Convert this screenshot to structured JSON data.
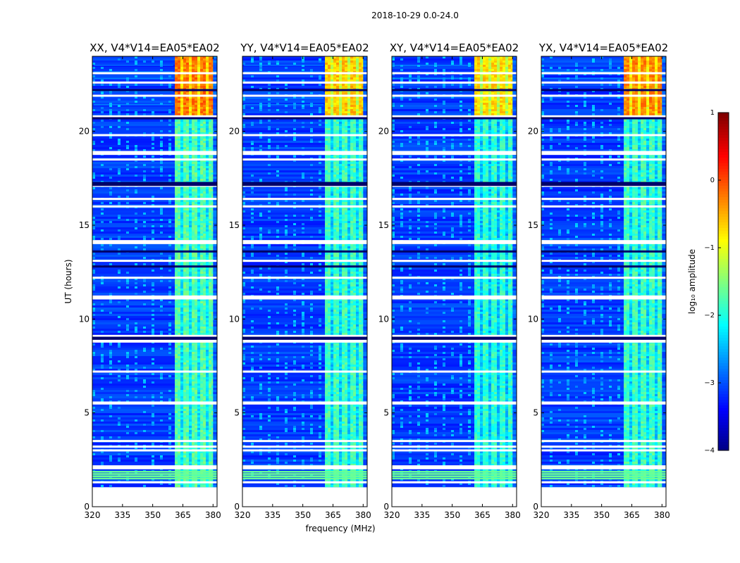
{
  "figure": {
    "title": "2018-10-29 0.0-24.0",
    "xlabel": "frequency (MHz)",
    "ylabel": "UT (hours)"
  },
  "colorbar": {
    "label": "log₁₀ amplitude",
    "vmin": -4,
    "vmax": 1,
    "ticks": [
      1,
      0,
      -1,
      -2,
      -3,
      -4
    ],
    "tick_labels": [
      "1",
      "0",
      "−1",
      "−2",
      "−3",
      "−4"
    ]
  },
  "chart_data": [
    {
      "type": "heatmap",
      "title": "XX, V4*V14=EA05*EA02",
      "xlabel": "",
      "ylabel": "UT (hours)",
      "xlim": [
        320,
        382
      ],
      "ylim": [
        0,
        24
      ],
      "x_ticks": [
        320,
        335,
        350,
        365,
        380
      ],
      "y_ticks": [
        0,
        5,
        10,
        15,
        20
      ],
      "hot_band_mhz": [
        361,
        380
      ],
      "band_level_early": -1.7,
      "band_level_late": -0.2,
      "background_level": -3.1,
      "data_start_hour": 1.1,
      "data_end_hour": 24.0,
      "change_hour": 20.9
    },
    {
      "type": "heatmap",
      "title": "YY, V4*V14=EA05*EA02",
      "xlabel": "frequency (MHz)",
      "ylabel": "",
      "xlim": [
        320,
        382
      ],
      "ylim": [
        0,
        24
      ],
      "x_ticks": [
        320,
        335,
        350,
        365,
        380
      ],
      "y_ticks": [
        0,
        5,
        10,
        15,
        20
      ],
      "hot_band_mhz": [
        361,
        380
      ],
      "band_level_early": -1.8,
      "band_level_late": -0.6,
      "background_level": -3.1,
      "data_start_hour": 1.1,
      "data_end_hour": 24.0,
      "change_hour": 20.9
    },
    {
      "type": "heatmap",
      "title": "XY, V4*V14=EA05*EA02",
      "xlabel": "",
      "ylabel": "",
      "xlim": [
        320,
        382
      ],
      "ylim": [
        0,
        24
      ],
      "x_ticks": [
        320,
        335,
        350,
        365,
        380
      ],
      "y_ticks": [
        0,
        5,
        10,
        15,
        20
      ],
      "hot_band_mhz": [
        361,
        380
      ],
      "band_level_early": -1.9,
      "band_level_late": -0.7,
      "background_level": -3.1,
      "data_start_hour": 1.1,
      "data_end_hour": 24.0,
      "change_hour": 20.9
    },
    {
      "type": "heatmap",
      "title": "YX, V4*V14=EA05*EA02",
      "xlabel": "",
      "ylabel": "",
      "xlim": [
        320,
        382
      ],
      "ylim": [
        0,
        24
      ],
      "x_ticks": [
        320,
        335,
        350,
        365,
        380
      ],
      "y_ticks": [
        0,
        5,
        10,
        15,
        20
      ],
      "hot_band_mhz": [
        361,
        380
      ],
      "band_level_early": -1.8,
      "band_level_late": -0.3,
      "background_level": -3.1,
      "data_start_hour": 1.1,
      "data_end_hour": 24.0,
      "change_hour": 20.9
    }
  ],
  "flagged_rows_hours": [
    1.3,
    2.05,
    2.15,
    3.0,
    3.2,
    3.5,
    5.5,
    5.55,
    7.2,
    8.8,
    8.85,
    9.1,
    11.1,
    11.15,
    11.2,
    12.2,
    13.1,
    14.05,
    14.1,
    14.15,
    16.0,
    16.4,
    17.1,
    17.2,
    18.5,
    18.8,
    18.9,
    19.8,
    20.8,
    21.9,
    22.6,
    23.1
  ],
  "dark_rows_hours": [
    8.95,
    9.0,
    17.15,
    17.25,
    20.7,
    13.6,
    12.8,
    22.2
  ]
}
